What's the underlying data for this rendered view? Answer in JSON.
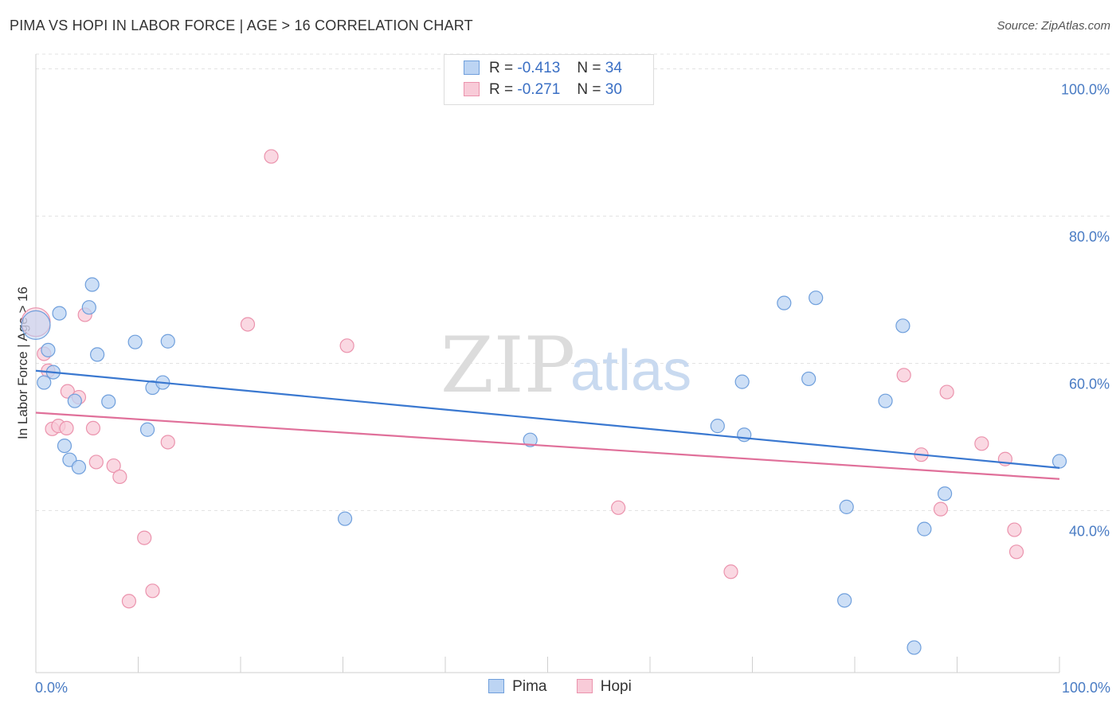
{
  "header": {
    "title": "PIMA VS HOPI IN LABOR FORCE | AGE > 16 CORRELATION CHART",
    "source": "Source: ZipAtlas.com"
  },
  "watermark": {
    "zip": "ZIP",
    "atlas": "atlas"
  },
  "legend_top": {
    "rows": [
      {
        "r_label": "R =",
        "r_value": "-0.413",
        "n_label": "N =",
        "n_value": "34"
      },
      {
        "r_label": "R =",
        "r_value": "-0.271",
        "n_label": "N =",
        "n_value": "30"
      }
    ]
  },
  "legend_bottom": {
    "pima": "Pima",
    "hopi": "Hopi"
  },
  "colors": {
    "pima_fill": "#bcd4f3",
    "pima_stroke": "#6f9fdc",
    "pima_line": "#3a78d0",
    "hopi_fill": "#f8cbd8",
    "hopi_stroke": "#eb93ad",
    "hopi_line": "#e0709a",
    "grid": "#e3e3e3",
    "axis_text": "#4a7cc4"
  },
  "chart_data": {
    "type": "scatter",
    "title": "PIMA VS HOPI IN LABOR FORCE | AGE > 16 CORRELATION CHART",
    "xlabel": "",
    "ylabel": "In Labor Force | Age > 16",
    "xlim": [
      0,
      100
    ],
    "ylim": [
      18,
      102
    ],
    "x_tick_labels": [
      "0.0%",
      "100.0%"
    ],
    "y_ticks": [
      {
        "value": 40,
        "label": "40.0%"
      },
      {
        "value": 60,
        "label": "60.0%"
      },
      {
        "value": 80,
        "label": "80.0%"
      },
      {
        "value": 100,
        "label": "100.0%"
      }
    ],
    "series": [
      {
        "name": "Pima",
        "r": -0.413,
        "n": 34,
        "trend": {
          "x": [
            0,
            100
          ],
          "y": [
            59.0,
            45.8
          ]
        },
        "points": [
          [
            0,
            65.2
          ],
          [
            1.2,
            61.8
          ],
          [
            1.7,
            58.8
          ],
          [
            0.8,
            57.4
          ],
          [
            2.3,
            66.8
          ],
          [
            5.5,
            70.7
          ],
          [
            5.2,
            67.6
          ],
          [
            6.0,
            61.2
          ],
          [
            2.8,
            48.8
          ],
          [
            3.3,
            46.9
          ],
          [
            4.2,
            45.9
          ],
          [
            3.8,
            54.9
          ],
          [
            7.1,
            54.8
          ],
          [
            9.7,
            62.9
          ],
          [
            12.9,
            63.0
          ],
          [
            11.4,
            56.7
          ],
          [
            12.4,
            57.4
          ],
          [
            10.9,
            51.0
          ],
          [
            30.2,
            38.9
          ],
          [
            48.3,
            49.6
          ],
          [
            66.6,
            51.5
          ],
          [
            69.2,
            50.3
          ],
          [
            69.0,
            57.5
          ],
          [
            73.1,
            68.2
          ],
          [
            75.5,
            57.9
          ],
          [
            76.2,
            68.9
          ],
          [
            79.2,
            40.5
          ],
          [
            79.0,
            27.8
          ],
          [
            83.0,
            54.9
          ],
          [
            84.7,
            65.1
          ],
          [
            86.8,
            37.5
          ],
          [
            88.8,
            42.3
          ],
          [
            100,
            46.7
          ],
          [
            85.8,
            21.4
          ]
        ]
      },
      {
        "name": "Hopi",
        "r": -0.271,
        "n": 30,
        "trend": {
          "x": [
            0,
            100
          ],
          "y": [
            53.3,
            44.3
          ]
        },
        "points": [
          [
            0,
            65.6
          ],
          [
            0.8,
            61.3
          ],
          [
            1.2,
            59.0
          ],
          [
            1.6,
            51.1
          ],
          [
            2.2,
            51.5
          ],
          [
            3.0,
            51.2
          ],
          [
            3.1,
            56.2
          ],
          [
            4.2,
            55.4
          ],
          [
            4.8,
            66.6
          ],
          [
            5.6,
            51.2
          ],
          [
            5.9,
            46.6
          ],
          [
            7.6,
            46.1
          ],
          [
            8.2,
            44.6
          ],
          [
            10.6,
            36.3
          ],
          [
            12.9,
            49.3
          ],
          [
            9.1,
            27.7
          ],
          [
            11.4,
            29.1
          ],
          [
            20.7,
            65.3
          ],
          [
            23.0,
            88.1
          ],
          [
            30.4,
            62.4
          ],
          [
            56.9,
            40.4
          ],
          [
            67.9,
            31.7
          ],
          [
            84.8,
            58.4
          ],
          [
            86.5,
            47.6
          ],
          [
            88.4,
            40.2
          ],
          [
            89.0,
            56.1
          ],
          [
            92.4,
            49.1
          ],
          [
            94.7,
            47.0
          ],
          [
            95.6,
            37.4
          ],
          [
            95.8,
            34.4
          ]
        ]
      }
    ]
  }
}
